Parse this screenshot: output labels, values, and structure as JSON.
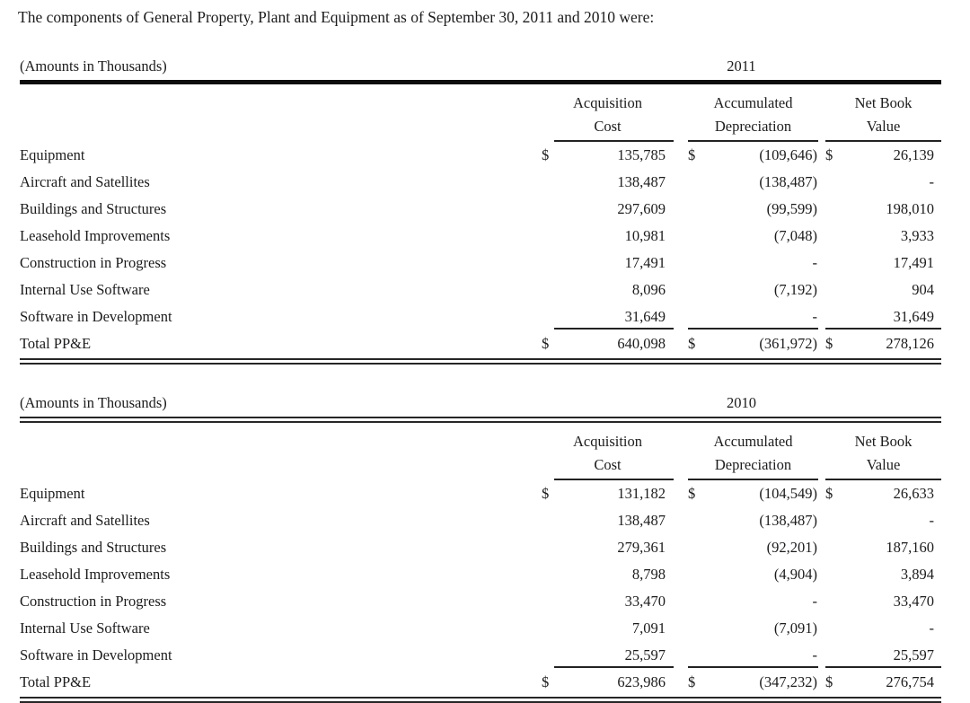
{
  "title": "The components of General Property, Plant and Equipment as of September 30, 2011 and 2010 were:",
  "tables": [
    {
      "caption": "(Amounts in Thousands)",
      "year": "2011",
      "headers": {
        "col1_line1": "Acquisition",
        "col1_line2": "Cost",
        "col2_line1": "Accumulated",
        "col2_line2": "Depreciation",
        "col3_line1": "Net Book",
        "col3_line2": "Value"
      },
      "rows": [
        {
          "label": "Equipment",
          "d1": "$",
          "v1": "135,785",
          "d2": "$",
          "v2": "(109,646)",
          "d3": "$",
          "v3": "26,139"
        },
        {
          "label": "Aircraft and Satellites",
          "d1": "",
          "v1": "138,487",
          "d2": "",
          "v2": "(138,487)",
          "d3": "",
          "v3": "-"
        },
        {
          "label": "Buildings and Structures",
          "d1": "",
          "v1": "297,609",
          "d2": "",
          "v2": "(99,599)",
          "d3": "",
          "v3": "198,010"
        },
        {
          "label": "Leasehold Improvements",
          "d1": "",
          "v1": "10,981",
          "d2": "",
          "v2": "(7,048)",
          "d3": "",
          "v3": "3,933"
        },
        {
          "label": "Construction in Progress",
          "d1": "",
          "v1": "17,491",
          "d2": "",
          "v2": "-",
          "d3": "",
          "v3": "17,491"
        },
        {
          "label": "Internal Use Software",
          "d1": "",
          "v1": "8,096",
          "d2": "",
          "v2": "(7,192)",
          "d3": "",
          "v3": "904"
        },
        {
          "label": "Software in Development",
          "d1": "",
          "v1": "31,649",
          "d2": "",
          "v2": "-",
          "d3": "",
          "v3": "31,649",
          "rule_below": true
        },
        {
          "label": "Total PP&E",
          "d1": "$",
          "v1": "640,098",
          "d2": "$",
          "v2": "(361,972)",
          "d3": "$",
          "v3": "278,126",
          "total": true
        }
      ]
    },
    {
      "caption": "(Amounts in Thousands)",
      "year": "2010",
      "headers": {
        "col1_line1": "Acquisition",
        "col1_line2": "Cost",
        "col2_line1": "Accumulated",
        "col2_line2": "Depreciation",
        "col3_line1": "Net Book",
        "col3_line2": "Value"
      },
      "rows": [
        {
          "label": "Equipment",
          "d1": "$",
          "v1": "131,182",
          "d2": "$",
          "v2": "(104,549)",
          "d3": "$",
          "v3": "26,633"
        },
        {
          "label": "Aircraft and Satellites",
          "d1": "",
          "v1": "138,487",
          "d2": "",
          "v2": "(138,487)",
          "d3": "",
          "v3": "-"
        },
        {
          "label": "Buildings and Structures",
          "d1": "",
          "v1": "279,361",
          "d2": "",
          "v2": "(92,201)",
          "d3": "",
          "v3": "187,160"
        },
        {
          "label": "Leasehold Improvements",
          "d1": "",
          "v1": "8,798",
          "d2": "",
          "v2": "(4,904)",
          "d3": "",
          "v3": "3,894"
        },
        {
          "label": "Construction in Progress",
          "d1": "",
          "v1": "33,470",
          "d2": "",
          "v2": "-",
          "d3": "",
          "v3": "33,470"
        },
        {
          "label": "Internal Use Software",
          "d1": "",
          "v1": "7,091",
          "d2": "",
          "v2": "(7,091)",
          "d3": "",
          "v3": "-"
        },
        {
          "label": "Software in Development",
          "d1": "",
          "v1": "25,597",
          "d2": "",
          "v2": "-",
          "d3": "",
          "v3": "25,597",
          "rule_below": true
        },
        {
          "label": "Total PP&E",
          "d1": "$",
          "v1": "623,986",
          "d2": "$",
          "v2": "(347,232)",
          "d3": "$",
          "v3": "276,754",
          "total": true
        }
      ]
    }
  ]
}
